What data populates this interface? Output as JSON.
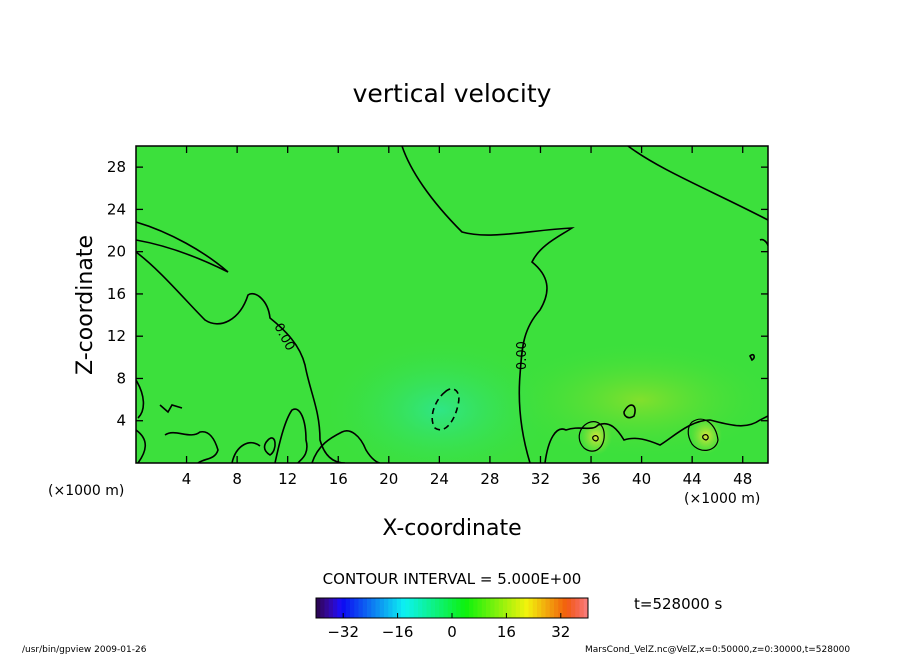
{
  "chart_data": {
    "type": "heatmap",
    "title": "vertical velocity",
    "xlabel": "X-coordinate",
    "ylabel": "Z-coordinate",
    "x_unit": "(×1000 m)",
    "x_unit_right": "(×1000 m)",
    "xlim": [
      0,
      50
    ],
    "ylim": [
      0,
      30
    ],
    "xticks": [
      4,
      8,
      12,
      16,
      20,
      24,
      28,
      32,
      36,
      40,
      44,
      48
    ],
    "yticks": [
      4,
      8,
      12,
      16,
      20,
      24,
      28
    ],
    "contour_interval_text": "CONTOUR INTERVAL = 5.000E+00",
    "contour_labels": [
      "0.00",
      "0.00"
    ],
    "time_text": "t=528000 s",
    "colorbar": {
      "range": [
        -40,
        40
      ],
      "ticks": [
        -32,
        -16,
        0,
        16,
        32
      ],
      "colormap": "rainbow"
    },
    "field_background_color": "#3ce03c",
    "footer_left": "/usr/bin/gpview   2009-01-26",
    "footer_right": "MarsCond_VelZ.nc@VelZ,x=0:50000,z=0:30000,t=528000"
  }
}
